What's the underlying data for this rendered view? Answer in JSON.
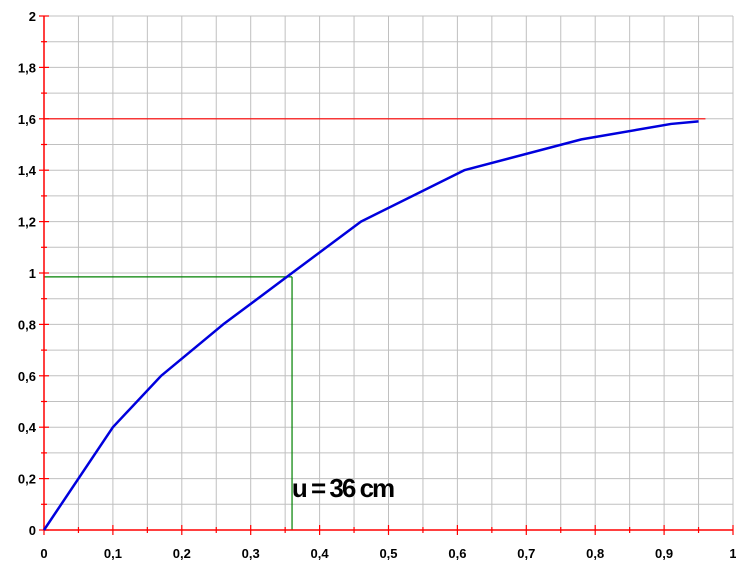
{
  "chart_data": {
    "type": "line",
    "xlim": [
      0,
      1
    ],
    "ylim": [
      0,
      2
    ],
    "x_ticks": [
      0,
      0.1,
      0.2,
      0.3,
      0.4,
      0.5,
      0.6,
      0.7,
      0.8,
      0.9,
      1
    ],
    "x_tick_labels": [
      "0",
      "0,1",
      "0,2",
      "0,3",
      "0,4",
      "0,5",
      "0,6",
      "0,7",
      "0,8",
      "0,9",
      "1"
    ],
    "y_ticks": [
      0,
      0.2,
      0.4,
      0.6,
      0.8,
      1,
      1.2,
      1.4,
      1.6,
      1.8,
      2
    ],
    "y_tick_labels": [
      "0",
      "0,2",
      "0,4",
      "0,6",
      "0,8",
      "1",
      "1,2",
      "1,4",
      "1,6",
      "1,8",
      "2"
    ],
    "grid": true,
    "series": [
      {
        "color": "#0000dd",
        "x": [
          0,
          0.1,
          0.17,
          0.26,
          0.35,
          0.46,
          0.61,
          0.78,
          0.91,
          0.95
        ],
        "y": [
          0,
          0.4,
          0.6,
          0.8,
          0.98,
          1.2,
          1.4,
          1.52,
          1.58,
          1.59
        ]
      }
    ],
    "reference_lines": [
      {
        "orientation": "horizontal",
        "y": 1.6,
        "color": "#ff0000"
      },
      {
        "orientation": "horizontal",
        "y": 0.985,
        "x_end": 0.36,
        "color": "#008000"
      },
      {
        "orientation": "vertical",
        "x": 0.36,
        "y_end": 0.985,
        "color": "#008000"
      }
    ],
    "annotation": {
      "text": "u = 36 cm",
      "x": 0.37,
      "y": 0.16
    },
    "colors": {
      "axis": "#ff0000",
      "grid": "#c0c0c0",
      "curve": "#0000dd",
      "guide": "#008000"
    }
  }
}
